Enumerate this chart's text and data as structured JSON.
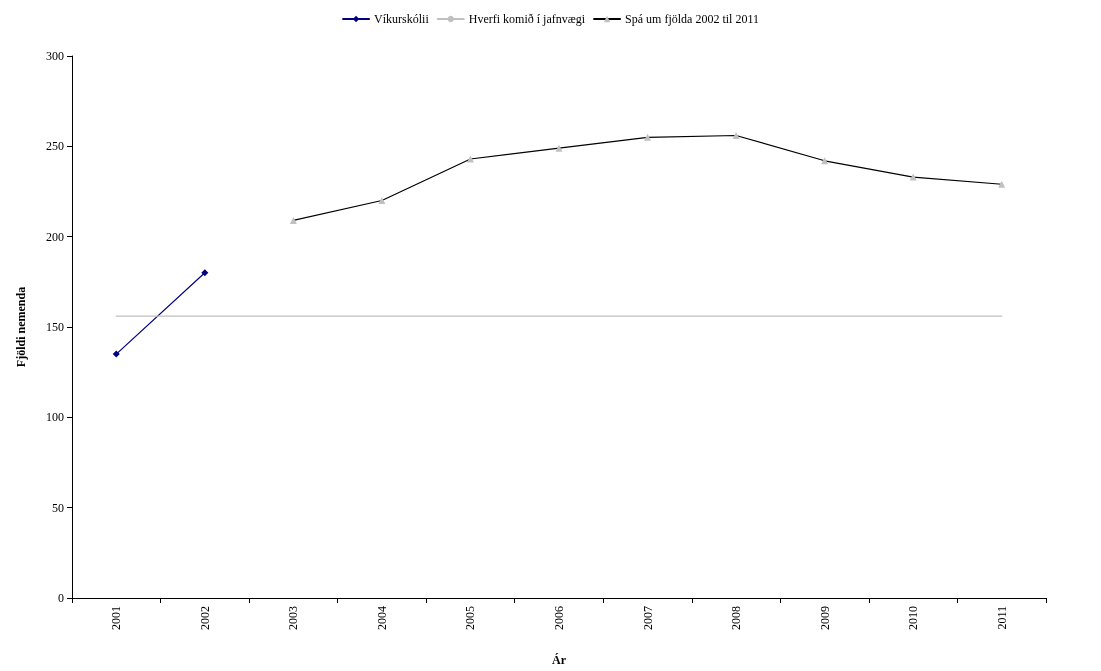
{
  "chart_data": {
    "type": "line",
    "xlabel": "Ár",
    "ylabel": "Fjöldi nemenda",
    "categories": [
      "2001",
      "2002",
      "2003",
      "2004",
      "2005",
      "2006",
      "2007",
      "2008",
      "2009",
      "2010",
      "2011"
    ],
    "series": [
      {
        "name": "Víkurskólii",
        "color": "#000080",
        "marker": "diamond",
        "values": [
          135,
          180,
          null,
          null,
          null,
          null,
          null,
          null,
          null,
          null,
          null
        ]
      },
      {
        "name": "Hverfi komið í jafnvægi",
        "color": "#c0c0c0",
        "marker": "none",
        "values": [
          156,
          156,
          156,
          156,
          156,
          156,
          156,
          156,
          156,
          156,
          156
        ]
      },
      {
        "name": "Spá um fjölda 2002 til 2011",
        "color": "#000000",
        "marker": "triangle",
        "colors": [
          null,
          null,
          "#c0c0c0",
          "#c0c0c0",
          "#c0c0c0",
          "#c0c0c0",
          "#c0c0c0",
          "#c0c0c0",
          "#c0c0c0",
          "#c0c0c0",
          "#c0c0c0"
        ],
        "values": [
          null,
          null,
          209,
          220,
          243,
          249,
          255,
          256,
          242,
          233,
          229
        ]
      }
    ],
    "ylim": [
      0,
      300
    ],
    "yticks": [
      0,
      50,
      100,
      150,
      200,
      250,
      300
    ],
    "grid": false,
    "legend": "top"
  }
}
